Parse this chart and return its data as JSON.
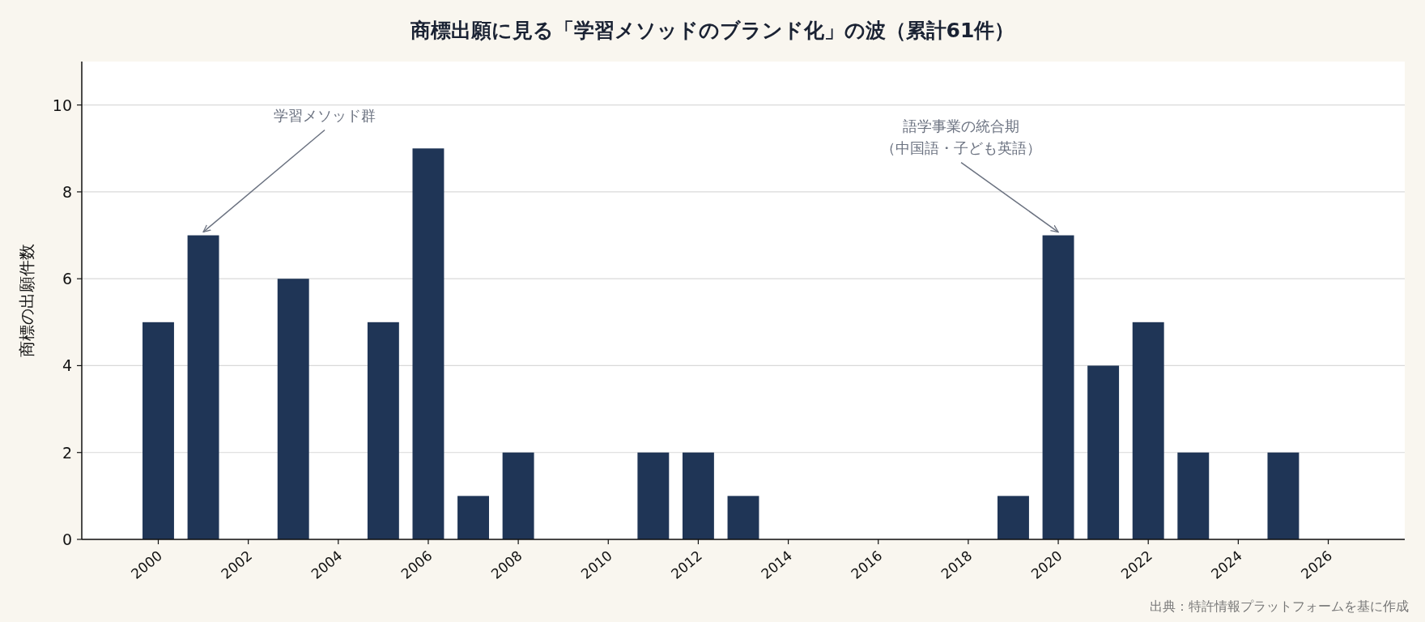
{
  "chart_data": {
    "type": "bar",
    "title": "商標出願に見る「学習メソッドのブランド化」の波（累計61件）",
    "ylabel": "商標の出願件数",
    "x": [
      2000,
      2001,
      2003,
      2005,
      2006,
      2007,
      2008,
      2011,
      2012,
      2013,
      2019,
      2020,
      2021,
      2022,
      2023,
      2025
    ],
    "values": [
      5,
      7,
      6,
      5,
      9,
      1,
      2,
      2,
      2,
      1,
      1,
      7,
      4,
      5,
      2,
      2
    ],
    "color": "#1f3556",
    "xlim": [
      1998.3,
      2027.7
    ],
    "xticks": [
      2000,
      2002,
      2004,
      2006,
      2008,
      2010,
      2012,
      2014,
      2016,
      2018,
      2020,
      2022,
      2024,
      2026
    ],
    "ylim": [
      0,
      11
    ],
    "yticks": [
      0,
      2,
      4,
      6,
      8,
      10
    ],
    "grid": "y",
    "annotations": [
      {
        "text": "学習メソッド群",
        "x": 2001,
        "y": 7
      },
      {
        "text": "語学事業の統合期（中国語・子ども英語）",
        "x": 2020,
        "y": 7
      },
      "出典：特許情報プラットフォームを基に作成"
    ]
  }
}
